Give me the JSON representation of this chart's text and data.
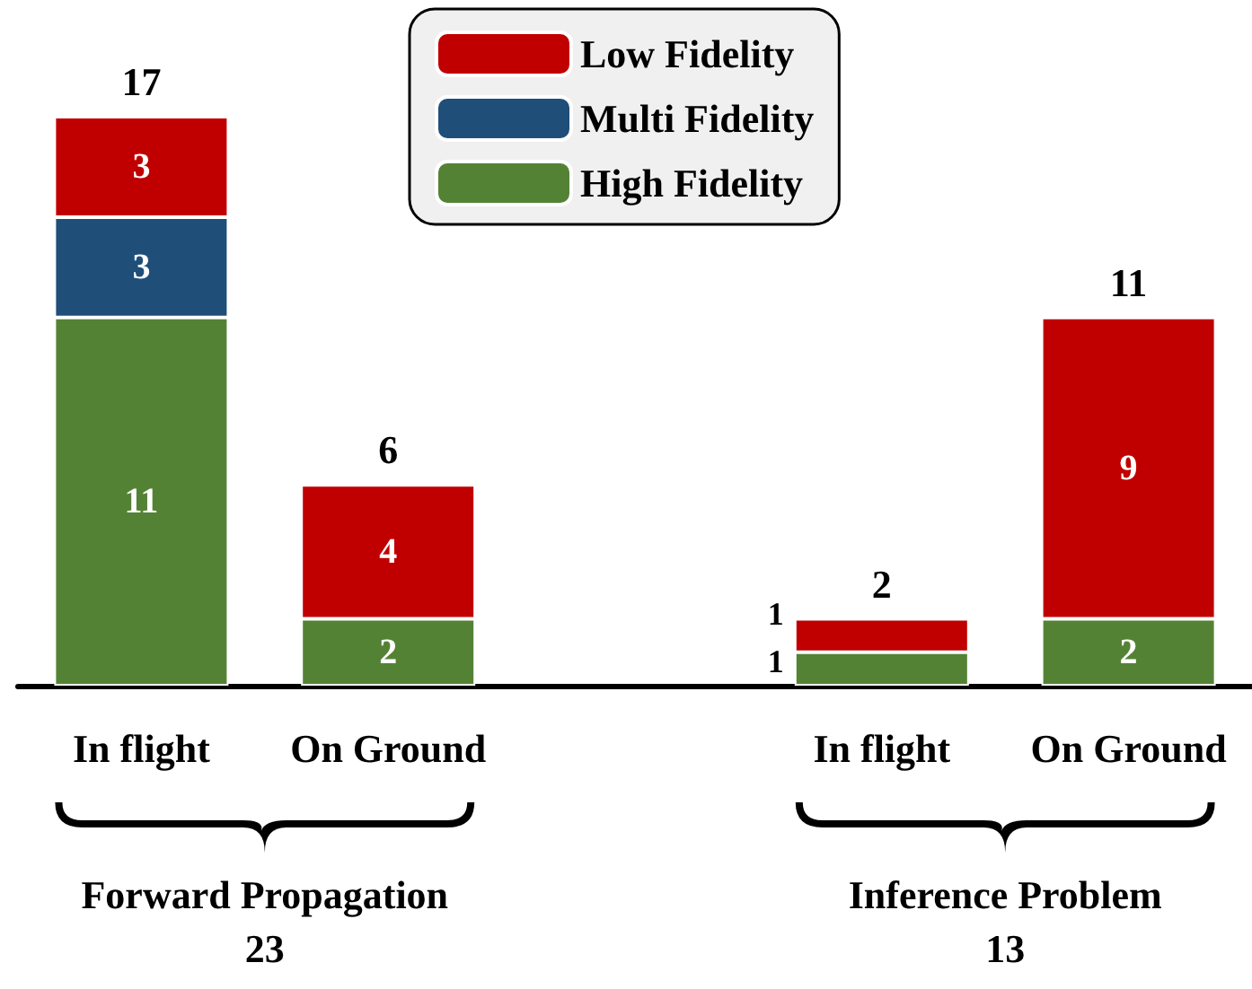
{
  "chart_data": {
    "type": "bar",
    "stacked": true,
    "data_labels": true,
    "legend": "top",
    "categories": [
      "In flight",
      "On Ground",
      null,
      "In flight",
      "On Ground"
    ],
    "series": [
      {
        "name": "High Fidelity",
        "color": "#548235",
        "values": [
          11,
          2,
          null,
          1,
          2
        ]
      },
      {
        "name": "Multi Fidelity",
        "color": "#1f4e79",
        "values": [
          3,
          null,
          null,
          null,
          null
        ]
      },
      {
        "name": "Low Fidelity",
        "color": "#c00000",
        "values": [
          3,
          4,
          null,
          1,
          9
        ]
      }
    ],
    "totals": [
      "17",
      "6",
      null,
      "2",
      "11"
    ],
    "annotations": [
      "Forward Propagation",
      "23",
      "Inference Problem",
      "13"
    ]
  }
}
